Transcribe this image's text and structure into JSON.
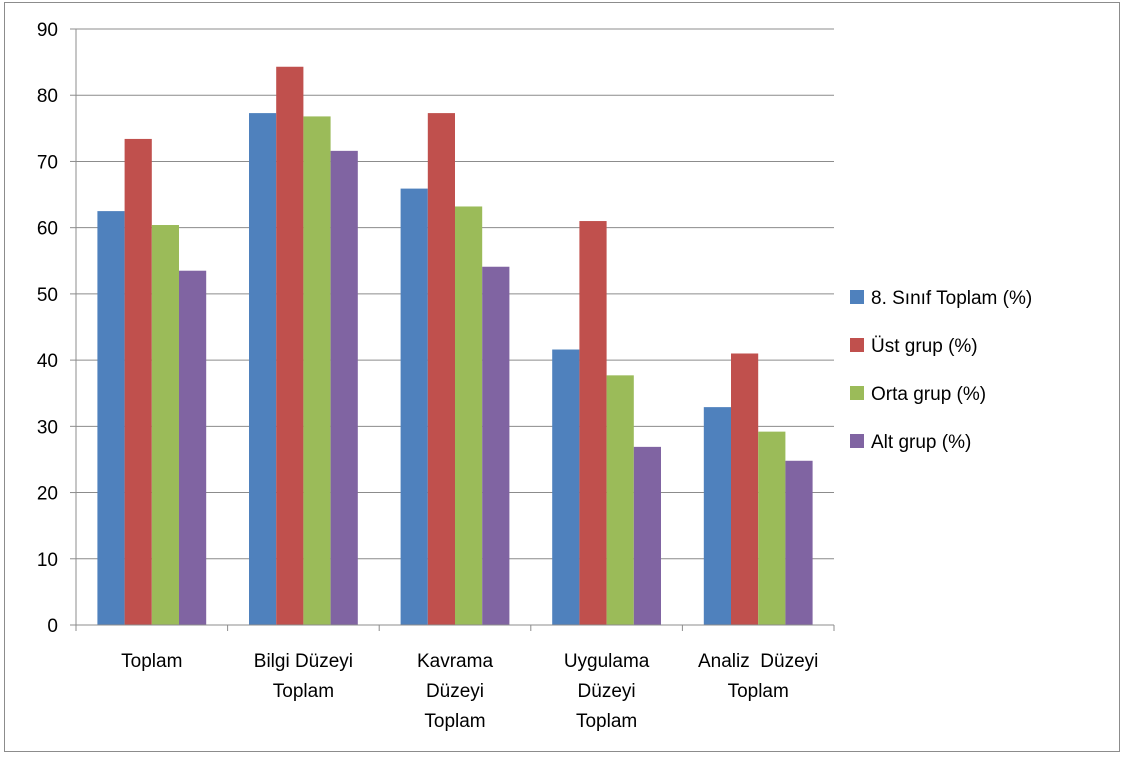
{
  "chart_data": {
    "type": "bar",
    "title": "",
    "xlabel": "",
    "ylabel": "",
    "ylim": [
      0,
      90
    ],
    "ytick_step": 10,
    "grid": true,
    "legend_position": "right",
    "categories": [
      [
        "Toplam"
      ],
      [
        "Bilgi Düzeyi",
        "Toplam"
      ],
      [
        "Kavrama",
        "Düzeyi",
        "Toplam"
      ],
      [
        "Uygulama",
        "Düzeyi",
        "Toplam"
      ],
      [
        "Analiz  Düzeyi",
        "Toplam"
      ]
    ],
    "series": [
      {
        "name": "8. Sınıf Toplam (%)",
        "color": "#4f81bd",
        "values": [
          62.5,
          77.3,
          65.9,
          41.6,
          32.9
        ]
      },
      {
        "name": "Üst grup (%)",
        "color": "#c0504d",
        "values": [
          73.4,
          84.3,
          77.3,
          61.0,
          41.0
        ]
      },
      {
        "name": "Orta grup (%)",
        "color": "#9bbb59",
        "values": [
          60.4,
          76.8,
          63.2,
          37.7,
          29.2
        ]
      },
      {
        "name": "Alt grup (%)",
        "color": "#8064a2",
        "values": [
          53.5,
          71.6,
          54.1,
          26.9,
          24.8
        ]
      }
    ]
  }
}
